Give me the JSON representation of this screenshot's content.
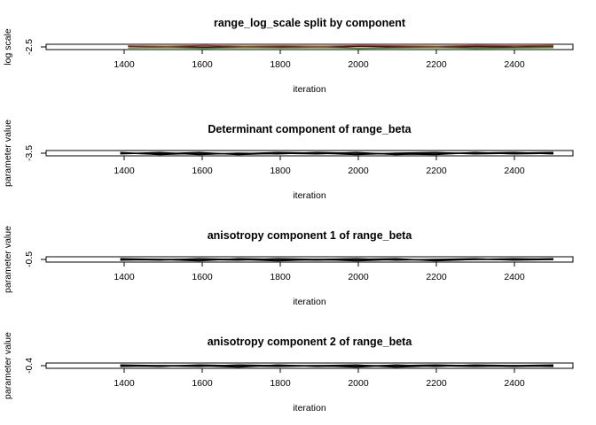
{
  "chart_data": [
    {
      "type": "line",
      "title": "range_log_scale split by component",
      "xlabel": "iteration",
      "ylabel": "log scale",
      "xlim": [
        1200,
        2550
      ],
      "ylim": [
        -2.54,
        -2.46
      ],
      "x_ticks": [
        1400,
        1600,
        1800,
        2000,
        2200,
        2400
      ],
      "y_ticks": [
        -2.5
      ],
      "x_tick_labels": [
        "1400",
        "1600",
        "1800",
        "2000",
        "2200",
        "2400"
      ],
      "y_tick_labels": [
        "-2.5"
      ],
      "x_range": [
        1410,
        2500
      ],
      "series": [
        {
          "color": "#000000",
          "values": [
            -2.49,
            -2.5,
            -2.505,
            -2.495,
            -2.5,
            -2.51,
            -2.49,
            -2.5,
            -2.5,
            -2.495,
            -2.505,
            -2.5
          ]
        },
        {
          "color": "#d62728",
          "values": [
            -2.485,
            -2.49,
            -2.48,
            -2.49,
            -2.485,
            -2.49,
            -2.48,
            -2.485,
            -2.49,
            -2.48,
            -2.485,
            -2.48
          ]
        },
        {
          "color": "#2ca02c",
          "values": [
            -2.515,
            -2.51,
            -2.52,
            -2.51,
            -2.515,
            -2.51,
            -2.52,
            -2.515,
            -2.51,
            -2.52,
            -2.515,
            -2.51
          ]
        }
      ],
      "grid": false
    },
    {
      "type": "line",
      "title": "Determinant component of range_beta",
      "xlabel": "iteration",
      "ylabel": "parameter value",
      "xlim": [
        1200,
        2550
      ],
      "ylim": [
        -3.54,
        -3.46
      ],
      "x_ticks": [
        1400,
        1600,
        1800,
        2000,
        2200,
        2400
      ],
      "y_ticks": [
        -3.5
      ],
      "x_tick_labels": [
        "1400",
        "1600",
        "1800",
        "2000",
        "2200",
        "2400"
      ],
      "y_tick_labels": [
        "-3.5"
      ],
      "x_range": [
        1390,
        2500
      ],
      "series": [
        {
          "color": "#000000",
          "values": [
            -3.49,
            -3.52,
            -3.5,
            -3.51,
            -3.49,
            -3.5,
            -3.52,
            -3.5,
            -3.49,
            -3.51,
            -3.5,
            -3.49
          ]
        },
        {
          "color": "#000000",
          "values": [
            -3.51,
            -3.49,
            -3.52,
            -3.5,
            -3.51,
            -3.49,
            -3.5,
            -3.51,
            -3.52,
            -3.49,
            -3.51,
            -3.5
          ]
        },
        {
          "color": "#000000",
          "values": [
            -3.5,
            -3.51,
            -3.49,
            -3.52,
            -3.5,
            -3.51,
            -3.49,
            -3.52,
            -3.5,
            -3.5,
            -3.49,
            -3.51
          ]
        }
      ],
      "grid": false
    },
    {
      "type": "line",
      "title": "anisotropy component 1 of range_beta",
      "xlabel": "iteration",
      "ylabel": "parameter value",
      "xlim": [
        1200,
        2550
      ],
      "ylim": [
        -0.54,
        -0.46
      ],
      "x_ticks": [
        1400,
        1600,
        1800,
        2000,
        2200,
        2400
      ],
      "y_ticks": [
        -0.5
      ],
      "x_tick_labels": [
        "1400",
        "1600",
        "1800",
        "2000",
        "2200",
        "2400"
      ],
      "y_tick_labels": [
        "-0.5"
      ],
      "x_range": [
        1390,
        2500
      ],
      "series": [
        {
          "color": "#000000",
          "values": [
            -0.5,
            -0.51,
            -0.49,
            -0.5,
            -0.52,
            -0.5,
            -0.49,
            -0.51,
            -0.5,
            -0.49,
            -0.51,
            -0.5
          ]
        },
        {
          "color": "#000000",
          "values": [
            -0.51,
            -0.5,
            -0.52,
            -0.49,
            -0.5,
            -0.51,
            -0.5,
            -0.49,
            -0.52,
            -0.5,
            -0.5,
            -0.49
          ]
        },
        {
          "color": "#000000",
          "values": [
            -0.49,
            -0.5,
            -0.5,
            -0.51,
            -0.49,
            -0.5,
            -0.52,
            -0.5,
            -0.51,
            -0.5,
            -0.49,
            -0.5
          ]
        }
      ],
      "grid": false
    },
    {
      "type": "line",
      "title": "anisotropy component 2 of range_beta",
      "xlabel": "iteration",
      "ylabel": "parameter value",
      "xlim": [
        1200,
        2550
      ],
      "ylim": [
        -0.44,
        -0.36
      ],
      "x_ticks": [
        1400,
        1600,
        1800,
        2000,
        2200,
        2400
      ],
      "y_ticks": [
        -0.4
      ],
      "x_tick_labels": [
        "1400",
        "1600",
        "1800",
        "2000",
        "2200",
        "2400"
      ],
      "y_tick_labels": [
        "-0.4"
      ],
      "x_range": [
        1390,
        2500
      ],
      "series": [
        {
          "color": "#000000",
          "values": [
            -0.4,
            -0.41,
            -0.39,
            -0.4,
            -0.41,
            -0.4,
            -0.39,
            -0.42,
            -0.4,
            -0.41,
            -0.4,
            -0.39
          ]
        },
        {
          "color": "#000000",
          "values": [
            -0.41,
            -0.4,
            -0.4,
            -0.42,
            -0.39,
            -0.41,
            -0.4,
            -0.4,
            -0.39,
            -0.4,
            -0.41,
            -0.4
          ]
        },
        {
          "color": "#000000",
          "values": [
            -0.39,
            -0.4,
            -0.41,
            -0.39,
            -0.4,
            -0.4,
            -0.42,
            -0.39,
            -0.41,
            -0.39,
            -0.4,
            -0.41
          ]
        }
      ],
      "grid": false
    }
  ]
}
